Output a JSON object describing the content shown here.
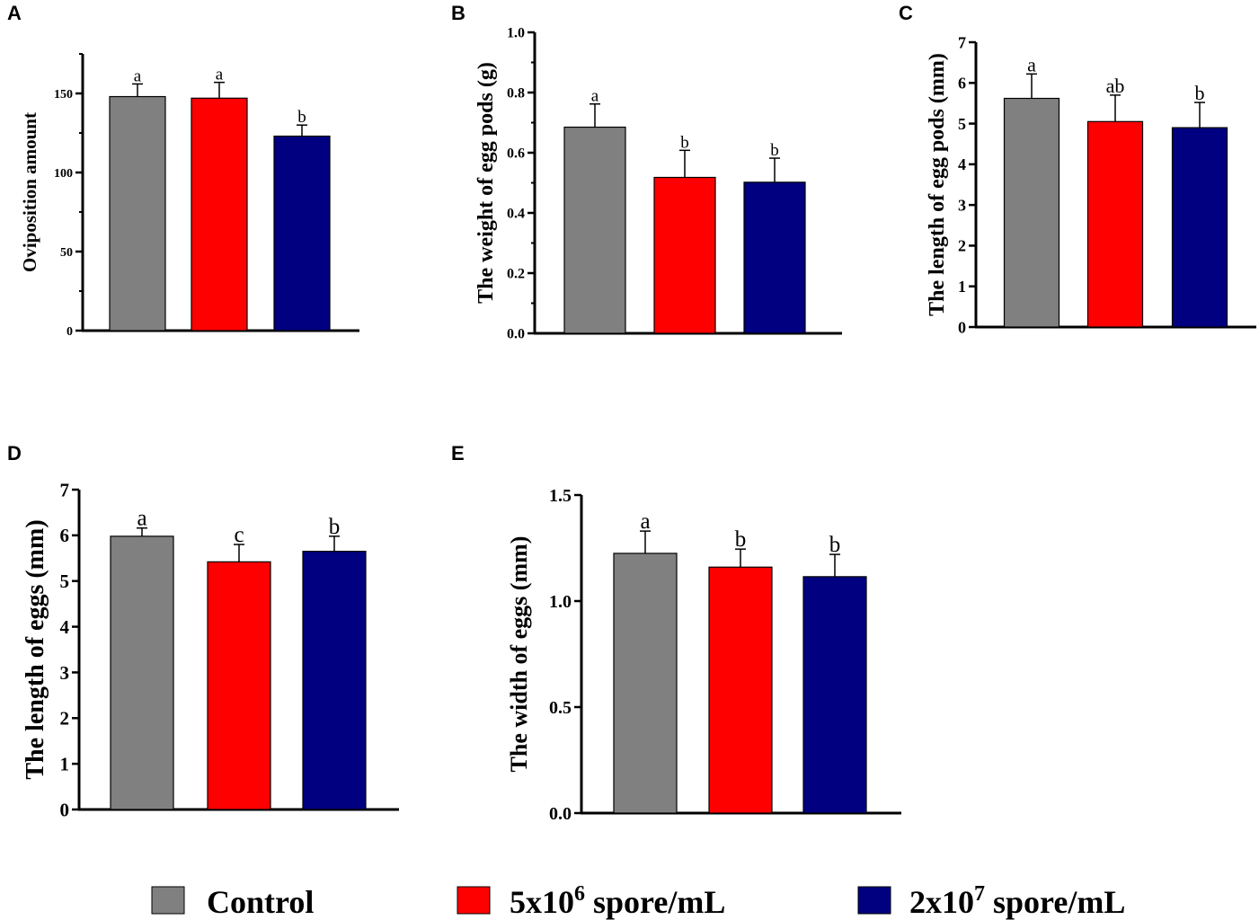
{
  "legend": {
    "items": [
      {
        "label": "Control",
        "color": "#808080"
      },
      {
        "label": "5x10",
        "sup": "6",
        "suffix": " spore/mL",
        "color": "#ff0000"
      },
      {
        "label": "2x10",
        "sup": "7",
        "suffix": " spore/mL",
        "color": "#000080"
      }
    ]
  },
  "chart_data": [
    {
      "panel": "A",
      "type": "bar",
      "categories": [
        "Control",
        "5x10^6 spore/mL",
        "2x10^7 spore/mL"
      ],
      "values": [
        148,
        147,
        123
      ],
      "errors": [
        8,
        10,
        7
      ],
      "sig_letters": [
        "a",
        "a",
        "b"
      ],
      "ylabel": "Oviposition amount",
      "ylim": [
        0,
        175
      ],
      "yticks": [
        0,
        50,
        100,
        150
      ],
      "ytick_labels": [
        "0",
        "50",
        "100",
        "150"
      ],
      "minor_step": 25
    },
    {
      "panel": "B",
      "type": "bar",
      "categories": [
        "Control",
        "5x10^6 spore/mL",
        "2x10^7 spore/mL"
      ],
      "values": [
        0.685,
        0.518,
        0.502
      ],
      "errors": [
        0.077,
        0.09,
        0.08
      ],
      "sig_letters": [
        "a",
        "b",
        "b"
      ],
      "ylabel": "The weight of egg pods (g)",
      "ylim": [
        0,
        1.0
      ],
      "yticks": [
        0,
        0.2,
        0.4,
        0.6,
        0.8,
        1.0
      ],
      "ytick_labels": [
        "0.0",
        "0.2",
        "0.4",
        "0.6",
        "0.8",
        "1.0"
      ],
      "minor_step": 0.1
    },
    {
      "panel": "C",
      "type": "bar",
      "categories": [
        "Control",
        "5x10^6 spore/mL",
        "2x10^7 spore/mL"
      ],
      "values": [
        5.62,
        5.05,
        4.9
      ],
      "errors": [
        0.6,
        0.65,
        0.62
      ],
      "sig_letters": [
        "a",
        "ab",
        "b"
      ],
      "ylabel": "The length of egg pods (mm)",
      "ylim": [
        0,
        7
      ],
      "yticks": [
        0,
        1,
        2,
        3,
        4,
        5,
        6,
        7
      ],
      "ytick_labels": [
        "0",
        "1",
        "2",
        "3",
        "4",
        "5",
        "6",
        "7"
      ],
      "minor_step": 0
    },
    {
      "panel": "D",
      "type": "bar",
      "categories": [
        "Control",
        "5x10^6 spore/mL",
        "2x10^7 spore/mL"
      ],
      "values": [
        5.98,
        5.42,
        5.65
      ],
      "errors": [
        0.18,
        0.38,
        0.33
      ],
      "sig_letters": [
        "a",
        "c",
        "b"
      ],
      "ylabel": "The length of eggs (mm)",
      "ylim": [
        0,
        7
      ],
      "yticks": [
        0,
        1,
        2,
        3,
        4,
        5,
        6,
        7
      ],
      "ytick_labels": [
        "0",
        "1",
        "2",
        "3",
        "4",
        "5",
        "6",
        "7"
      ],
      "minor_step": 0
    },
    {
      "panel": "E",
      "type": "bar",
      "categories": [
        "Control",
        "5x10^6 spore/mL",
        "2x10^7 spore/mL"
      ],
      "values": [
        1.225,
        1.16,
        1.115
      ],
      "errors": [
        0.105,
        0.085,
        0.105
      ],
      "sig_letters": [
        "a",
        "b",
        "b"
      ],
      "ylabel": "The width of eggs (mm)",
      "ylim": [
        0,
        1.5
      ],
      "yticks": [
        0,
        0.5,
        1.0,
        1.5
      ],
      "ytick_labels": [
        "0.0",
        "0.5",
        "1.0",
        "1.5"
      ],
      "minor_step": 0
    }
  ]
}
